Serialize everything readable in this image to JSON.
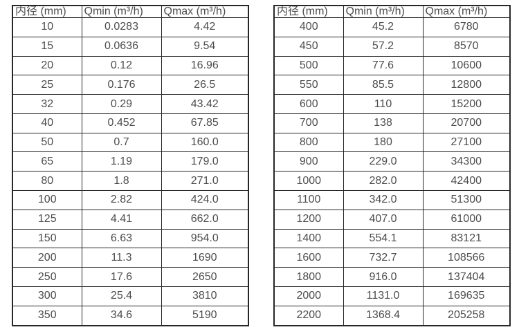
{
  "page": {
    "background_color": "#ffffff",
    "text_color": "#4d4d4d",
    "border_color": "#262626"
  },
  "tables": [
    {
      "name": "flow-rate-table-small-diameters",
      "headers": [
        "内径 (mm)",
        "Qmin (m³/h)",
        "Qmax (m³/h)"
      ],
      "rows": [
        [
          "10",
          "0.0283",
          "4.42"
        ],
        [
          "15",
          "0.0636",
          "9.54"
        ],
        [
          "20",
          "0.12",
          "16.96"
        ],
        [
          "25",
          "0.176",
          "26.5"
        ],
        [
          "32",
          "0.29",
          "43.42"
        ],
        [
          "40",
          "0.452",
          "67.85"
        ],
        [
          "50",
          "0.7",
          "160.0"
        ],
        [
          "65",
          "1.19",
          "179.0"
        ],
        [
          "80",
          "1.8",
          "271.0"
        ],
        [
          "100",
          "2.82",
          "424.0"
        ],
        [
          "125",
          "4.41",
          "662.0"
        ],
        [
          "150",
          "6.63",
          "954.0"
        ],
        [
          "200",
          "11.3",
          "1690"
        ],
        [
          "250",
          "17.6",
          "2650"
        ],
        [
          "300",
          "25.4",
          "3810"
        ],
        [
          "350",
          "34.6",
          "5190"
        ]
      ]
    },
    {
      "name": "flow-rate-table-large-diameters",
      "headers": [
        "内径 (mm)",
        "Qmin (m³/h)",
        "Qmax (m³/h)"
      ],
      "rows": [
        [
          "400",
          "45.2",
          "6780"
        ],
        [
          "450",
          "57.2",
          "8570"
        ],
        [
          "500",
          "77.6",
          "10600"
        ],
        [
          "550",
          "85.5",
          "12800"
        ],
        [
          "600",
          "110",
          "15200"
        ],
        [
          "700",
          "138",
          "20700"
        ],
        [
          "800",
          "180",
          "27100"
        ],
        [
          "900",
          "229.0",
          "34300"
        ],
        [
          "1000",
          "282.0",
          "42400"
        ],
        [
          "1100",
          "342.0",
          "51300"
        ],
        [
          "1200",
          "407.0",
          "61000"
        ],
        [
          "1400",
          "554.1",
          "83121"
        ],
        [
          "1600",
          "732.7",
          "108566"
        ],
        [
          "1800",
          "916.0",
          "137404"
        ],
        [
          "2000",
          "1131.0",
          "169635"
        ],
        [
          "2200",
          "1368.4",
          "205258"
        ]
      ]
    }
  ]
}
